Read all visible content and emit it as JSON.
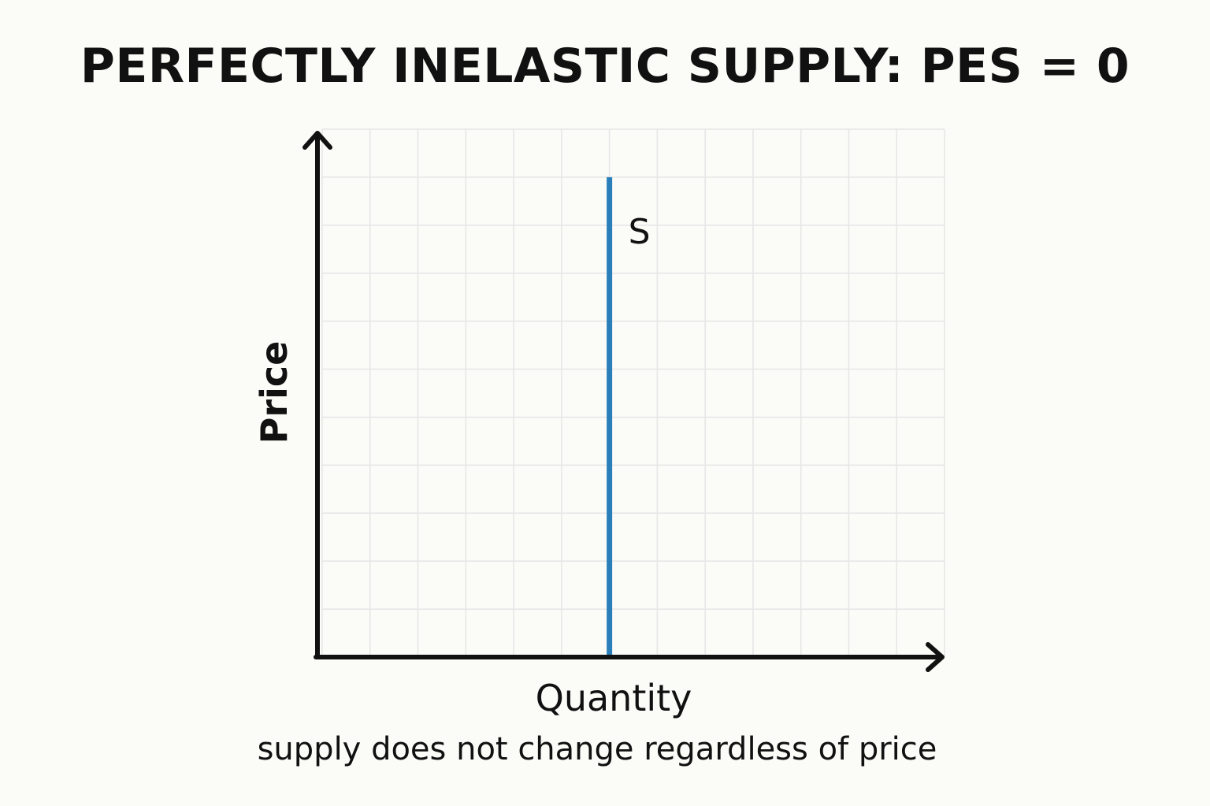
{
  "chart_data": {
    "type": "line",
    "title": "PERFECTLY INELASTIC SUPPLY: PES = 0",
    "xlabel": "Quantity",
    "ylabel": "Price",
    "caption": "supply does not change regardless of price",
    "grid": true,
    "series": [
      {
        "name": "S",
        "color": "#2a7fba",
        "x": [
          6,
          6
        ],
        "y": [
          0,
          10
        ]
      }
    ],
    "xlim": [
      0,
      13
    ],
    "ylim": [
      0,
      11
    ]
  },
  "colors": {
    "background": "#fbfbf8",
    "grid": "#e6e6e6",
    "axis": "#111111",
    "supply": "#2a7fba"
  }
}
